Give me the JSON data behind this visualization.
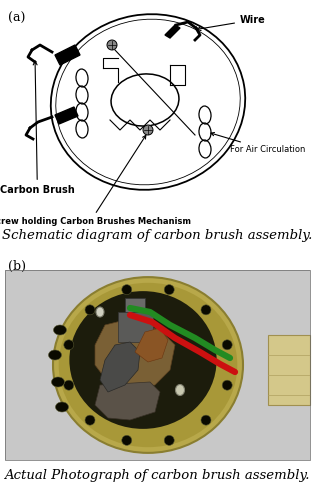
{
  "fig_width": 3.15,
  "fig_height": 5.0,
  "dpi": 100,
  "bg_color": "#ffffff",
  "panel_a_label": "(a)",
  "panel_b_label": "(b)",
  "caption_a": "Schematic diagram of carbon brush assembly.",
  "caption_b": "Actual Photograph of carbon brush assembly.",
  "caption_fontsize": 9.5,
  "panel_label_fontsize": 9,
  "annotation_fontsize": 6.0,
  "annot_bold_fontsize": 7.0
}
